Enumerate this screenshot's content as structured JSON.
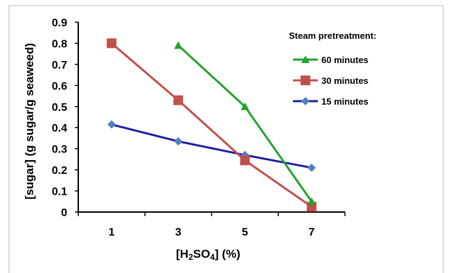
{
  "chart_data": {
    "type": "line",
    "ylabel": "[sugar] (g sugar/g seaweed)",
    "xlabel_parts": [
      "[H",
      "2",
      "SO",
      "4",
      "] (%)"
    ],
    "categories": [
      "1",
      "3",
      "5",
      "7"
    ],
    "ylim": [
      0,
      0.9
    ],
    "yticks": [
      "0",
      "0.1",
      "0.2",
      "0.3",
      "0.4",
      "0.5",
      "0.6",
      "0.7",
      "0.8",
      "0.9"
    ],
    "grid": false,
    "legend_title": "Steam pretreatment:",
    "legend_position": "top-right",
    "series": [
      {
        "name": "60 minutes",
        "marker": "triangle",
        "color": "#22a32b",
        "values": [
          null,
          0.79,
          0.5,
          0.05
        ]
      },
      {
        "name": "30 minutes",
        "marker": "square",
        "color": "#c0504d",
        "markerColor": "#c0504d",
        "values": [
          0.8,
          0.53,
          0.245,
          0.025
        ]
      },
      {
        "name": "15 minutes",
        "marker": "diamond",
        "color": "#1f1fa0",
        "markerColor": "#4f81bd",
        "values": [
          0.415,
          0.335,
          0.27,
          0.21
        ]
      }
    ]
  }
}
